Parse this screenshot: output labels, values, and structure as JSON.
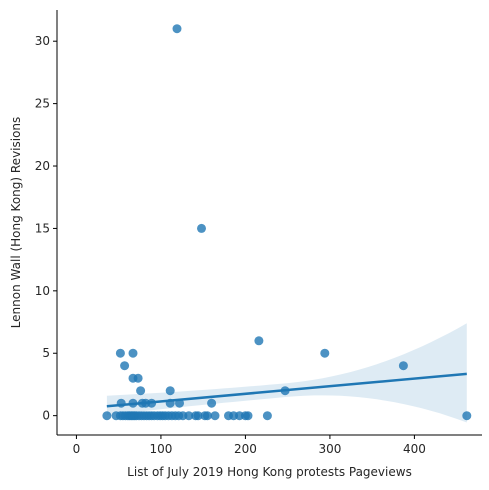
{
  "chart_data": {
    "type": "scatter",
    "title": "",
    "xlabel": "List of July 2019 Hong Kong protests Pageviews",
    "ylabel": "Lennon Wall (Hong Kong) Revisions",
    "xlim": [
      -23,
      480
    ],
    "ylim": [
      -1.55,
      32.5
    ],
    "xticks": [
      0,
      100,
      200,
      300,
      400
    ],
    "yticks": [
      0,
      5,
      10,
      15,
      20,
      25,
      30
    ],
    "grid": false,
    "legend": "none",
    "colors": {
      "points": "#1f77b4",
      "line": "#1f77b4",
      "band": "#1f77b4"
    },
    "points": [
      {
        "x": 36,
        "y": 0
      },
      {
        "x": 47,
        "y": 0
      },
      {
        "x": 52,
        "y": 0
      },
      {
        "x": 55,
        "y": 0
      },
      {
        "x": 58,
        "y": 0
      },
      {
        "x": 61,
        "y": 0
      },
      {
        "x": 63,
        "y": 0
      },
      {
        "x": 65,
        "y": 0
      },
      {
        "x": 67,
        "y": 0
      },
      {
        "x": 69,
        "y": 0
      },
      {
        "x": 71,
        "y": 0
      },
      {
        "x": 74,
        "y": 0
      },
      {
        "x": 77,
        "y": 0
      },
      {
        "x": 80,
        "y": 0
      },
      {
        "x": 83,
        "y": 0
      },
      {
        "x": 86,
        "y": 0
      },
      {
        "x": 89,
        "y": 0
      },
      {
        "x": 92,
        "y": 0
      },
      {
        "x": 96,
        "y": 0
      },
      {
        "x": 99,
        "y": 0
      },
      {
        "x": 102,
        "y": 0
      },
      {
        "x": 105,
        "y": 0
      },
      {
        "x": 109,
        "y": 0
      },
      {
        "x": 113,
        "y": 0
      },
      {
        "x": 117,
        "y": 0
      },
      {
        "x": 121,
        "y": 0
      },
      {
        "x": 126,
        "y": 0
      },
      {
        "x": 133,
        "y": 0
      },
      {
        "x": 141,
        "y": 0
      },
      {
        "x": 144,
        "y": 0
      },
      {
        "x": 152,
        "y": 0
      },
      {
        "x": 155,
        "y": 0
      },
      {
        "x": 164,
        "y": 0
      },
      {
        "x": 180,
        "y": 0
      },
      {
        "x": 186,
        "y": 0
      },
      {
        "x": 193,
        "y": 0
      },
      {
        "x": 200,
        "y": 0
      },
      {
        "x": 203,
        "y": 0
      },
      {
        "x": 226,
        "y": 0
      },
      {
        "x": 462,
        "y": 0
      },
      {
        "x": 53,
        "y": 1
      },
      {
        "x": 67,
        "y": 1
      },
      {
        "x": 78,
        "y": 1
      },
      {
        "x": 82,
        "y": 1
      },
      {
        "x": 89,
        "y": 1
      },
      {
        "x": 111,
        "y": 1
      },
      {
        "x": 122,
        "y": 1
      },
      {
        "x": 160,
        "y": 1
      },
      {
        "x": 76,
        "y": 2
      },
      {
        "x": 111,
        "y": 2
      },
      {
        "x": 247,
        "y": 2
      },
      {
        "x": 67,
        "y": 3
      },
      {
        "x": 73,
        "y": 3
      },
      {
        "x": 57,
        "y": 4
      },
      {
        "x": 387,
        "y": 4
      },
      {
        "x": 52,
        "y": 5
      },
      {
        "x": 67,
        "y": 5
      },
      {
        "x": 294,
        "y": 5
      },
      {
        "x": 216,
        "y": 6
      },
      {
        "x": 148,
        "y": 15
      },
      {
        "x": 119,
        "y": 31
      }
    ],
    "regression": {
      "x": [
        36,
        462
      ],
      "y": [
        0.75,
        3.35
      ],
      "ci_lower": [
        0.05,
        -0.55
      ],
      "ci_upper": [
        1.6,
        7.4
      ]
    }
  }
}
